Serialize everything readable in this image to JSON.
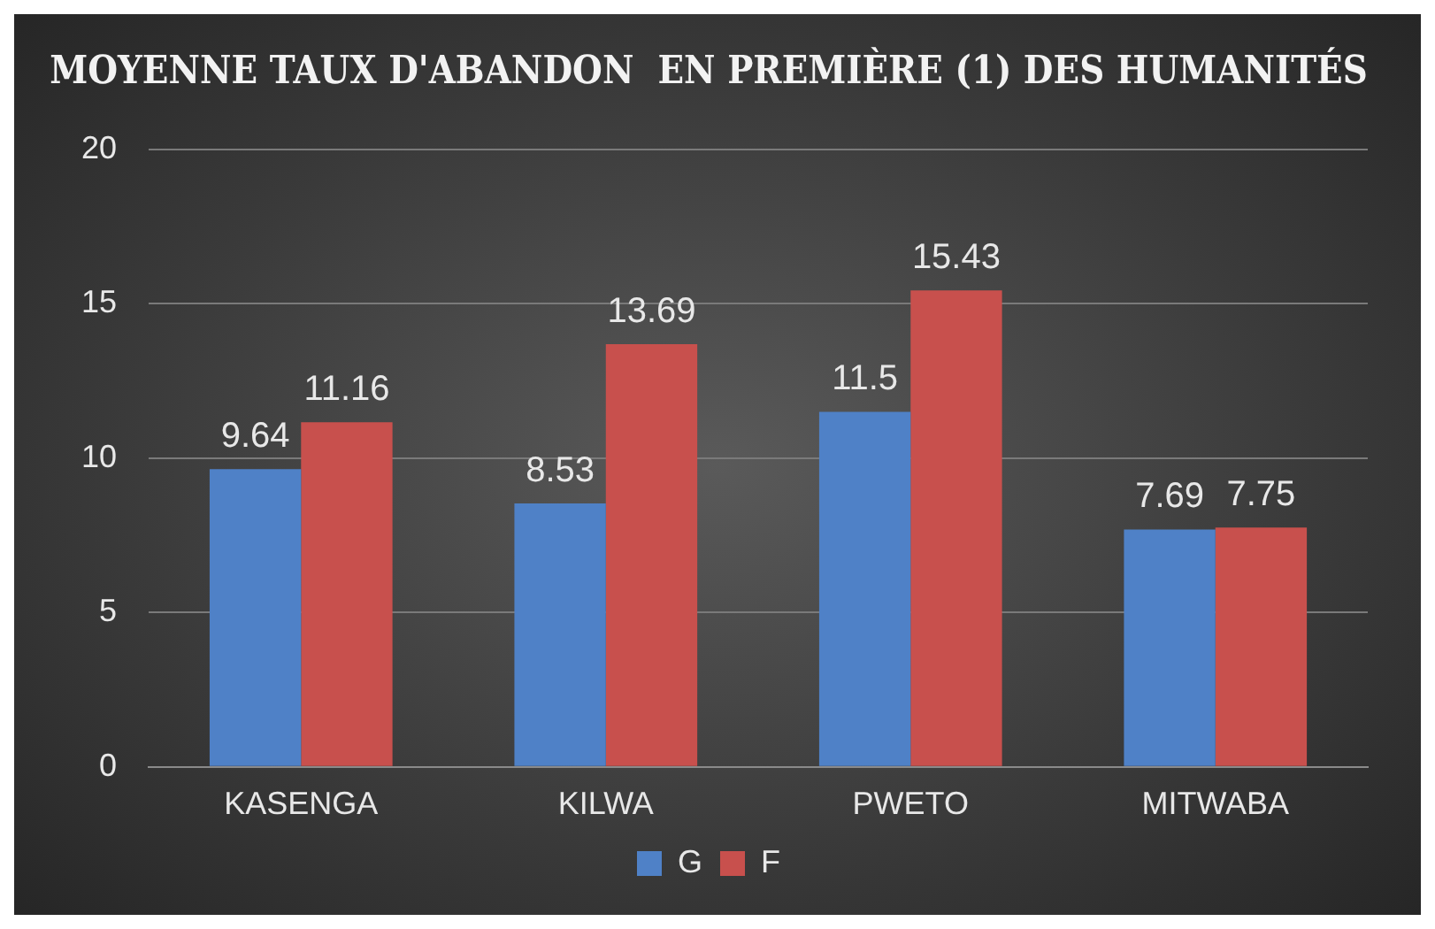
{
  "chart_data": {
    "type": "bar",
    "title": "MOYENNE TAUX D'ABANDON  EN PREMIÈRE (1) DES HUMANITÉS",
    "categories": [
      "KASENGA",
      "KILWA",
      "PWETO",
      "MITWABA"
    ],
    "series": [
      {
        "name": "G",
        "color": "#4f81c7",
        "values": [
          9.64,
          8.53,
          11.5,
          7.69
        ]
      },
      {
        "name": "F",
        "color": "#c8504d",
        "values": [
          11.16,
          13.69,
          15.43,
          7.75
        ]
      }
    ],
    "ylim": [
      0,
      20
    ],
    "yticks": [
      0,
      5,
      10,
      15,
      20
    ],
    "grid": "y",
    "legend": "bottom",
    "data_labels": true
  }
}
